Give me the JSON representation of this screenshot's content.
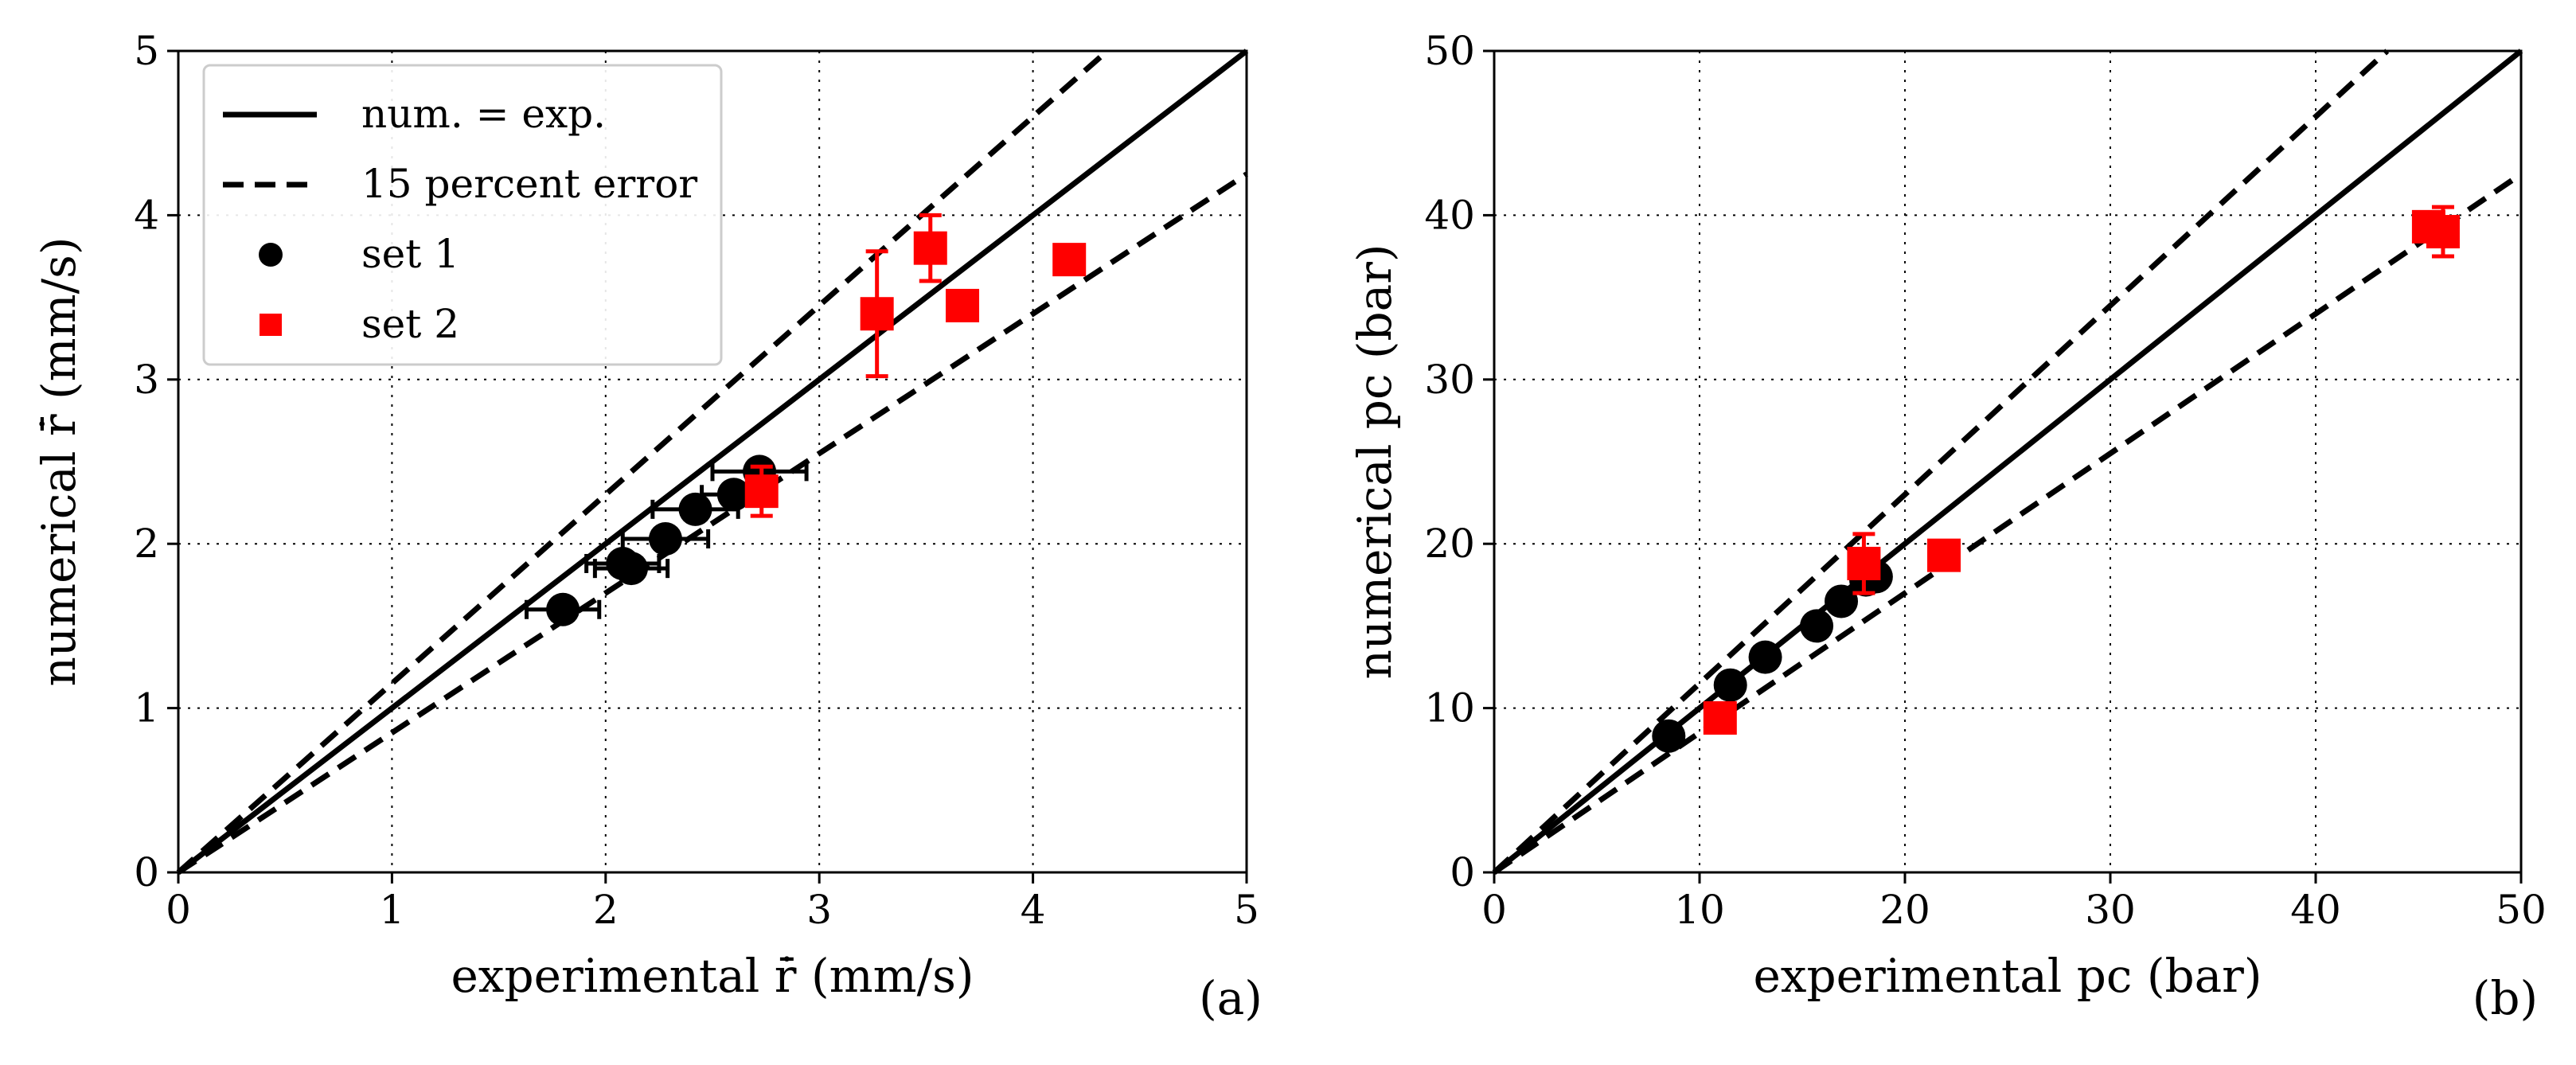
{
  "chart_data": [
    {
      "type": "scatter",
      "panel_label": "(a)",
      "xlabel": "experimental r̄̇ (mm/s)",
      "ylabel": "numerical r̄̇ (mm/s)",
      "xlim": [
        0,
        5
      ],
      "ylim": [
        0,
        5
      ],
      "xticks": [
        "0",
        "1",
        "2",
        "3",
        "4",
        "5"
      ],
      "yticks": [
        "0",
        "1",
        "2",
        "3",
        "4",
        "5"
      ],
      "grid": true,
      "legend_location": "upper-left",
      "legend": [
        "num. = exp.",
        "15 percent error",
        "set 1",
        "set 2"
      ],
      "reference_lines": [
        {
          "name": "num. = exp.",
          "style": "solid",
          "slope": 1.0
        },
        {
          "name": "15 percent error",
          "style": "dashed",
          "slope": 1.15
        },
        {
          "name": "15 percent error",
          "style": "dashed",
          "slope": 0.85
        }
      ],
      "series": [
        {
          "name": "set 1",
          "marker": "circle",
          "color": "#000000",
          "points": [
            {
              "x": 1.8,
              "y": 1.6,
              "xerr": 0.17
            },
            {
              "x": 2.08,
              "y": 1.88,
              "xerr": 0.17
            },
            {
              "x": 2.12,
              "y": 1.85,
              "xerr": 0.17
            },
            {
              "x": 2.28,
              "y": 2.03,
              "xerr": 0.2
            },
            {
              "x": 2.42,
              "y": 2.21,
              "xerr": 0.2
            },
            {
              "x": 2.6,
              "y": 2.3,
              "xerr": 0.15
            },
            {
              "x": 2.72,
              "y": 2.44,
              "xerr": 0.22
            }
          ]
        },
        {
          "name": "set 2",
          "marker": "square",
          "color": "#ff0000",
          "points": [
            {
              "x": 2.73,
              "y": 2.32,
              "yerr": 0.15
            },
            {
              "x": 3.27,
              "y": 3.4,
              "yerr": 0.38
            },
            {
              "x": 3.52,
              "y": 3.8,
              "yerr": 0.2
            },
            {
              "x": 3.67,
              "y": 3.45,
              "yerr": 0.05
            },
            {
              "x": 4.17,
              "y": 3.73,
              "yerr": 0.08
            }
          ]
        }
      ]
    },
    {
      "type": "scatter",
      "panel_label": "(b)",
      "xlabel": "experimental pc (bar)",
      "ylabel": "numerical pc (bar)",
      "xlim": [
        0,
        50
      ],
      "ylim": [
        0,
        50
      ],
      "xticks": [
        "0",
        "10",
        "20",
        "30",
        "40",
        "50"
      ],
      "yticks": [
        "0",
        "10",
        "20",
        "30",
        "40",
        "50"
      ],
      "grid": true,
      "reference_lines": [
        {
          "name": "num. = exp.",
          "style": "solid",
          "slope": 1.0
        },
        {
          "name": "15 percent error",
          "style": "dashed",
          "slope": 1.15
        },
        {
          "name": "15 percent error",
          "style": "dashed",
          "slope": 0.85
        }
      ],
      "series": [
        {
          "name": "set 1",
          "marker": "circle",
          "color": "#000000",
          "points": [
            {
              "x": 8.5,
              "y": 8.3
            },
            {
              "x": 11.5,
              "y": 11.4
            },
            {
              "x": 13.2,
              "y": 13.1
            },
            {
              "x": 15.7,
              "y": 15.0
            },
            {
              "x": 16.9,
              "y": 16.5
            },
            {
              "x": 18.1,
              "y": 17.8
            },
            {
              "x": 18.6,
              "y": 18.0
            }
          ]
        },
        {
          "name": "set 2",
          "marker": "square",
          "color": "#ff0000",
          "points": [
            {
              "x": 11.0,
              "y": 9.4,
              "yerr": 0.8
            },
            {
              "x": 18.0,
              "y": 18.8,
              "yerr": 1.8
            },
            {
              "x": 21.9,
              "y": 19.3,
              "yerr": 0.7
            },
            {
              "x": 45.5,
              "y": 39.3,
              "yerr": 0.7
            },
            {
              "x": 46.2,
              "y": 39.0,
              "yerr": 1.5
            }
          ]
        }
      ]
    }
  ]
}
